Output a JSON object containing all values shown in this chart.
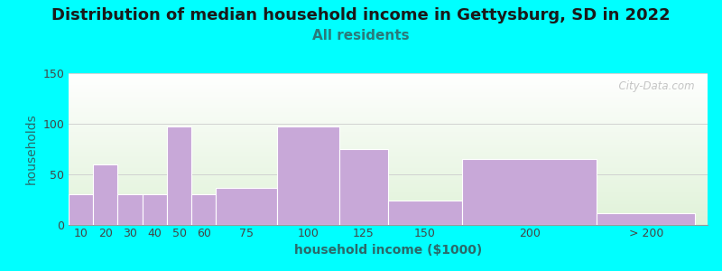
{
  "title": "Distribution of median household income in Gettysburg, SD in 2022",
  "subtitle": "All residents",
  "xlabel": "household income ($1000)",
  "ylabel": "households",
  "background_outer": "#00FFFF",
  "bar_color": "#C8A8D8",
  "bar_edgecolor": "#ffffff",
  "categories": [
    "10",
    "20",
    "30",
    "40",
    "50",
    "60",
    "75",
    "100",
    "125",
    "150",
    "200",
    "> 200"
  ],
  "values": [
    30,
    60,
    30,
    30,
    97,
    30,
    37,
    97,
    75,
    24,
    65,
    12
  ],
  "x_left_edges": [
    0,
    1,
    2,
    3,
    4,
    5,
    6,
    8.5,
    11,
    13,
    16,
    21.5
  ],
  "bar_widths_raw": [
    1,
    1,
    1,
    1,
    1,
    1,
    2.5,
    2.5,
    2,
    3,
    5.5,
    4
  ],
  "ylim": [
    0,
    150
  ],
  "yticks": [
    0,
    50,
    100,
    150
  ],
  "title_fontsize": 13,
  "subtitle_fontsize": 11,
  "axis_label_fontsize": 10,
  "tick_fontsize": 9,
  "watermark": "  City-Data.com",
  "title_color": "#1a1a1a",
  "subtitle_color": "#2a7a7a",
  "ylabel_color": "#2a6a6a",
  "xlabel_color": "#2a6a6a"
}
